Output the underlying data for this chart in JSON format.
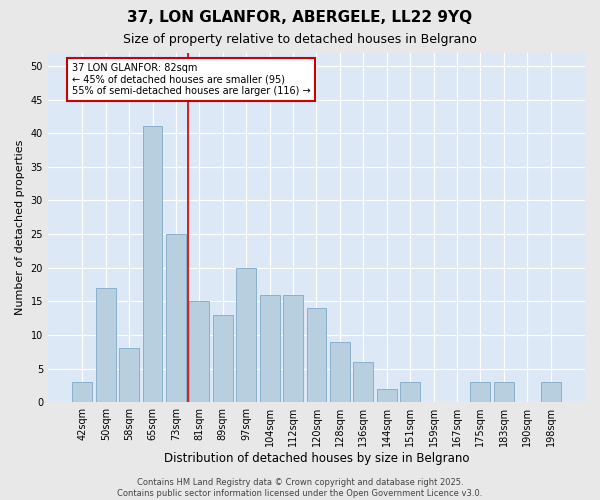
{
  "title": "37, LON GLANFOR, ABERGELE, LL22 9YQ",
  "subtitle": "Size of property relative to detached houses in Belgrano",
  "xlabel": "Distribution of detached houses by size in Belgrano",
  "ylabel": "Number of detached properties",
  "categories": [
    "42sqm",
    "50sqm",
    "58sqm",
    "65sqm",
    "73sqm",
    "81sqm",
    "89sqm",
    "97sqm",
    "104sqm",
    "112sqm",
    "120sqm",
    "128sqm",
    "136sqm",
    "144sqm",
    "151sqm",
    "159sqm",
    "167sqm",
    "175sqm",
    "183sqm",
    "190sqm",
    "198sqm"
  ],
  "values": [
    3,
    17,
    8,
    41,
    25,
    15,
    13,
    20,
    16,
    16,
    14,
    9,
    6,
    2,
    3,
    0,
    0,
    3,
    3,
    0,
    3
  ],
  "bar_color": "#b8cfe0",
  "bar_edgecolor": "#8ab0cc",
  "bar_linewidth": 0.7,
  "vline_x": 4.5,
  "vline_color": "#cc0000",
  "annotation_text": "37 LON GLANFOR: 82sqm\n← 45% of detached houses are smaller (95)\n55% of semi-detached houses are larger (116) →",
  "annotation_box_facecolor": "#ffffff",
  "annotation_box_edgecolor": "#cc0000",
  "ylim": [
    0,
    52
  ],
  "yticks": [
    0,
    5,
    10,
    15,
    20,
    25,
    30,
    35,
    40,
    45,
    50
  ],
  "plot_background": "#dce8f5",
  "grid_color": "#ffffff",
  "fig_background": "#e8e8e8",
  "footer_text": "Contains HM Land Registry data © Crown copyright and database right 2025.\nContains public sector information licensed under the Open Government Licence v3.0.",
  "title_fontsize": 11,
  "subtitle_fontsize": 9,
  "xlabel_fontsize": 8.5,
  "ylabel_fontsize": 8,
  "tick_fontsize": 7,
  "annotation_fontsize": 7,
  "footer_fontsize": 6
}
